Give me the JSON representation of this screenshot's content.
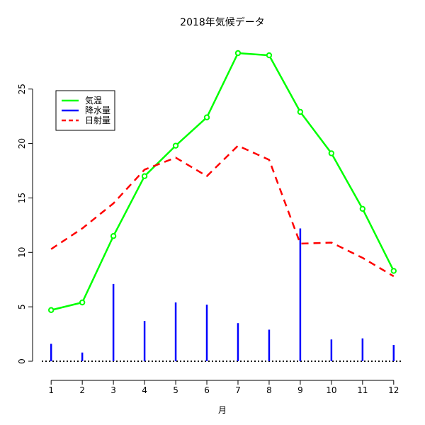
{
  "chart_data": {
    "type": "line",
    "title": "2018年気候データ",
    "xlabel": "月",
    "ylabel": "",
    "x": [
      1,
      2,
      3,
      4,
      5,
      6,
      7,
      8,
      9,
      10,
      11,
      12
    ],
    "xticks": [
      "1",
      "2",
      "3",
      "4",
      "5",
      "6",
      "7",
      "8",
      "9",
      "10",
      "11",
      "12"
    ],
    "yticks": [
      "0",
      "5",
      "10",
      "15",
      "20",
      "25"
    ],
    "xlim": [
      0.7,
      12.3
    ],
    "ylim": [
      0,
      28.3
    ],
    "grid": false,
    "legend_position": "top-left",
    "series": [
      {
        "name": "気温",
        "kind": "line-points",
        "color": "#00ff00",
        "dash": "solid",
        "values": [
          4.7,
          5.4,
          11.5,
          17.0,
          19.8,
          22.4,
          28.3,
          28.1,
          22.9,
          19.1,
          14.0,
          8.3
        ]
      },
      {
        "name": "降水量",
        "kind": "vertical-bars",
        "color": "#0000ff",
        "dash": "solid",
        "values": [
          1.6,
          0.8,
          7.1,
          3.7,
          5.4,
          5.2,
          3.5,
          2.9,
          12.2,
          2.0,
          2.1,
          1.5
        ]
      },
      {
        "name": "日射量",
        "kind": "line",
        "color": "#ff0000",
        "dash": "dashed",
        "values": [
          10.3,
          12.2,
          14.5,
          17.6,
          18.7,
          17.0,
          19.8,
          18.5,
          10.8,
          10.9,
          9.5,
          7.8
        ]
      }
    ],
    "reference_line": {
      "y": 0,
      "style": "dotted",
      "color": "#000000"
    }
  }
}
